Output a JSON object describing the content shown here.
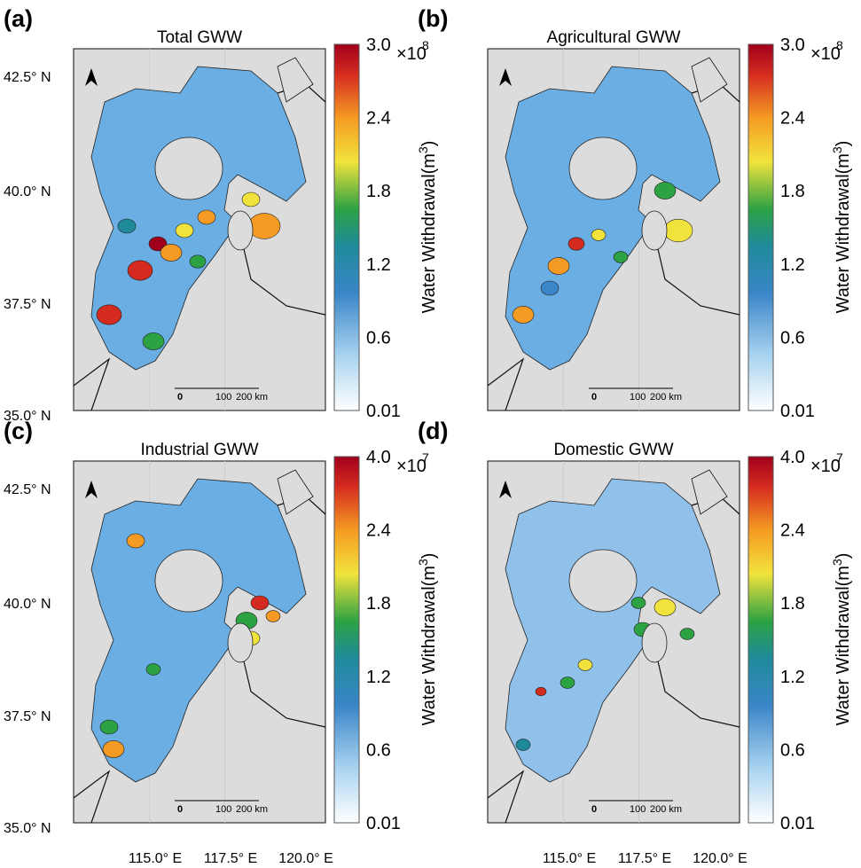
{
  "panels": [
    {
      "label": "(a)",
      "title": "Total GWW",
      "colorbar": {
        "ticks": [
          "0.01",
          "0.6",
          "1.2",
          "1.8",
          "2.4",
          "3.0"
        ],
        "multiplier": "×10",
        "exponent": "8",
        "label": "Water Withdrawal(m",
        "label_exponent": "3",
        "label_close": ")"
      },
      "scale_bar": [
        "0",
        "100",
        "200 km"
      ]
    },
    {
      "label": "(b)",
      "title": "Agricultural GWW",
      "colorbar": {
        "ticks": [
          "0.01",
          "0.6",
          "1.2",
          "1.8",
          "2.4",
          "3.0"
        ],
        "multiplier": "×10",
        "exponent": "8",
        "label": "Water Withdrawal(m",
        "label_exponent": "3",
        "label_close": ")"
      },
      "scale_bar": [
        "0",
        "100",
        "200 km"
      ]
    },
    {
      "label": "(c)",
      "title": "Industrial GWW",
      "colorbar": {
        "ticks": [
          "0.01",
          "0.6",
          "1.2",
          "1.8",
          "2.4",
          "4.0"
        ],
        "multiplier": "×10",
        "exponent": "7",
        "label": "Water Withdrawal(m",
        "label_exponent": "3",
        "label_close": ")"
      },
      "scale_bar": [
        "0",
        "100",
        "200 km"
      ]
    },
    {
      "label": "(d)",
      "title": "Domestic GWW",
      "colorbar": {
        "ticks": [
          "0.01",
          "0.6",
          "1.2",
          "1.8",
          "2.4",
          "4.0"
        ],
        "multiplier": "×10",
        "exponent": "7",
        "label": "Water Withdrawal(m",
        "label_exponent": "3",
        "label_close": ")"
      },
      "scale_bar": [
        "0",
        "100",
        "200 km"
      ]
    }
  ],
  "lat_labels": [
    "42.5° N",
    "40.0° N",
    "37.5° N",
    "35.0° N"
  ],
  "lon_labels": [
    "115.0° E",
    "117.5° E",
    "120.0° E"
  ]
}
